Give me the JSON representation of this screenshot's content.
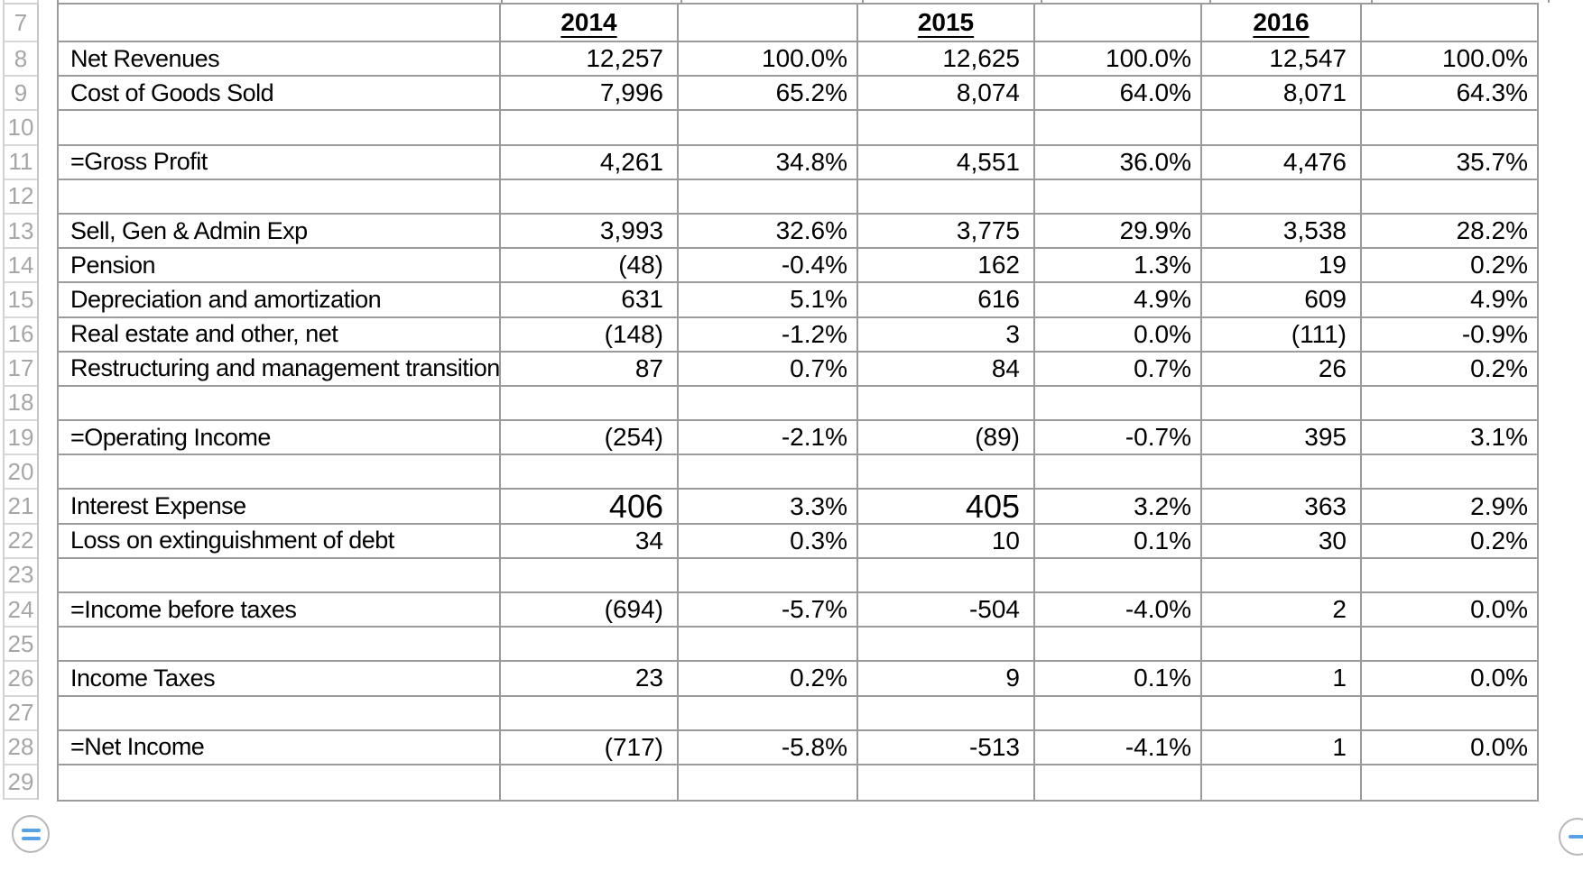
{
  "table": {
    "rows": [
      {
        "num": 7,
        "type": "year-header",
        "label": "",
        "cells": [
          "2014",
          "",
          "2015",
          "",
          "2016",
          ""
        ]
      },
      {
        "num": 8,
        "label": "Net Revenues",
        "cells": [
          "12,257",
          "100.0%",
          "12,625",
          "100.0%",
          "12,547",
          "100.0%"
        ]
      },
      {
        "num": 9,
        "label": "Cost of Goods Sold",
        "cells": [
          "7,996",
          "65.2%",
          "8,074",
          "64.0%",
          "8,071",
          "64.3%"
        ]
      },
      {
        "num": 10,
        "label": "",
        "cells": [
          "",
          "",
          "",
          "",
          "",
          ""
        ]
      },
      {
        "num": 11,
        "label": "=Gross Profit",
        "cells": [
          "4,261",
          "34.8%",
          "4,551",
          "36.0%",
          "4,476",
          "35.7%"
        ]
      },
      {
        "num": 12,
        "label": "",
        "cells": [
          "",
          "",
          "",
          "",
          "",
          ""
        ]
      },
      {
        "num": 13,
        "label": "Sell, Gen & Admin Exp",
        "cells": [
          "3,993",
          "32.6%",
          "3,775",
          "29.9%",
          "3,538",
          "28.2%"
        ]
      },
      {
        "num": 14,
        "label": "Pension",
        "cells": [
          "(48)",
          "-0.4%",
          "162",
          "1.3%",
          "19",
          "0.2%"
        ]
      },
      {
        "num": 15,
        "label": "Depreciation and amortization",
        "cells": [
          "631",
          "5.1%",
          "616",
          "4.9%",
          "609",
          "4.9%"
        ]
      },
      {
        "num": 16,
        "label": "Real estate and other, net",
        "cells": [
          "(148)",
          "-1.2%",
          "3",
          "0.0%",
          "(111)",
          "-0.9%"
        ]
      },
      {
        "num": 17,
        "label": "Restructuring and management transition",
        "cells": [
          "87",
          "0.7%",
          "84",
          "0.7%",
          "26",
          "0.2%"
        ]
      },
      {
        "num": 18,
        "label": "",
        "cells": [
          "",
          "",
          "",
          "",
          "",
          ""
        ]
      },
      {
        "num": 19,
        "label": "=Operating Income",
        "cells": [
          "(254)",
          "-2.1%",
          "(89)",
          "-0.7%",
          "395",
          "3.1%"
        ]
      },
      {
        "num": 20,
        "label": "",
        "cells": [
          "",
          "",
          "",
          "",
          "",
          ""
        ]
      },
      {
        "num": 21,
        "label": "Interest Expense",
        "cells": [
          "406",
          "3.3%",
          "405",
          "3.2%",
          "363",
          "2.9%"
        ],
        "big": [
          1,
          3
        ]
      },
      {
        "num": 22,
        "label": "Loss on extinguishment of debt",
        "cells": [
          "34",
          "0.3%",
          "10",
          "0.1%",
          "30",
          "0.2%"
        ]
      },
      {
        "num": 23,
        "label": "",
        "cells": [
          "",
          "",
          "",
          "",
          "",
          ""
        ]
      },
      {
        "num": 24,
        "label": "=Income before taxes",
        "cells": [
          "(694)",
          "-5.7%",
          "-504",
          "-4.0%",
          "2",
          "0.0%"
        ]
      },
      {
        "num": 25,
        "label": "",
        "cells": [
          "",
          "",
          "",
          "",
          "",
          ""
        ]
      },
      {
        "num": 26,
        "label": "Income Taxes",
        "cells": [
          "23",
          "0.2%",
          "9",
          "0.1%",
          "1",
          "0.0%"
        ]
      },
      {
        "num": 27,
        "label": "",
        "cells": [
          "",
          "",
          "",
          "",
          "",
          ""
        ]
      },
      {
        "num": 28,
        "label": "=Net Income",
        "cells": [
          "(717)",
          "-5.8%",
          "-513",
          "-4.1%",
          "1",
          "0.0%"
        ]
      },
      {
        "num": 29,
        "label": "",
        "cells": [
          "",
          "",
          "",
          "",
          "",
          ""
        ]
      }
    ]
  },
  "controls": {
    "left_button_icon": "double-line-handle-icon",
    "right_button_icon": "line-handle-icon"
  },
  "colors": {
    "gridline": "#9b9b9b",
    "strip_line": "#d2d2d2",
    "row_number_text": "#a6a6a6",
    "accent_blue": "#57a2e6"
  }
}
